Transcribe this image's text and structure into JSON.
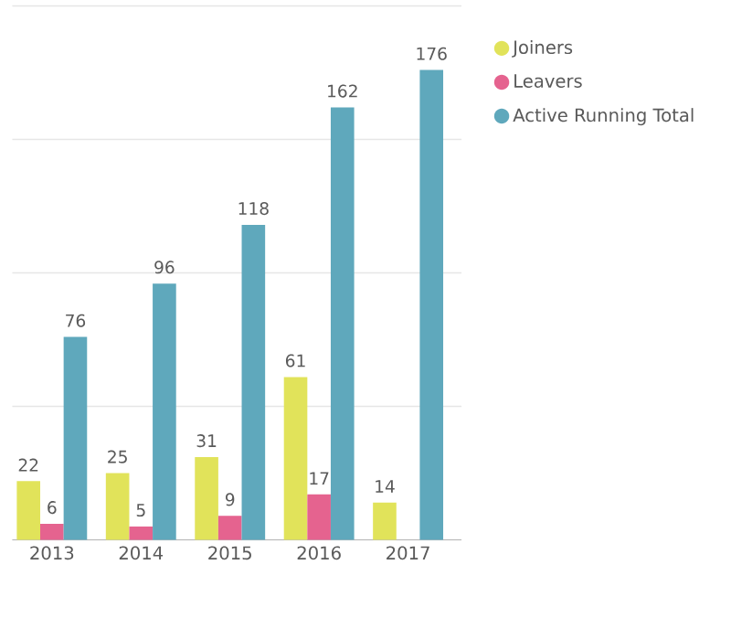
{
  "chart_data": {
    "type": "bar",
    "categories": [
      "2013",
      "2014",
      "2015",
      "2016",
      "2017"
    ],
    "series": [
      {
        "name": "Joiners",
        "color": "#e1e35a",
        "values": [
          22,
          25,
          31,
          61,
          14
        ]
      },
      {
        "name": "Leavers",
        "color": "#e5638f",
        "values": [
          6,
          5,
          9,
          17,
          null
        ]
      },
      {
        "name": "Active Running Total",
        "color": "#5fa8bc",
        "values": [
          76,
          96,
          118,
          162,
          176
        ]
      }
    ],
    "ylim": [
      0,
      200
    ],
    "yticks": [
      {
        "value": 0,
        "label": null
      },
      {
        "value": 50,
        "label": null
      },
      {
        "value": 100,
        "label": null
      },
      {
        "value": 150,
        "label": null
      },
      {
        "value": 200,
        "label": null
      }
    ],
    "grid": "y",
    "legend": "top right",
    "tick_labels": "x",
    "data_labels": true
  }
}
